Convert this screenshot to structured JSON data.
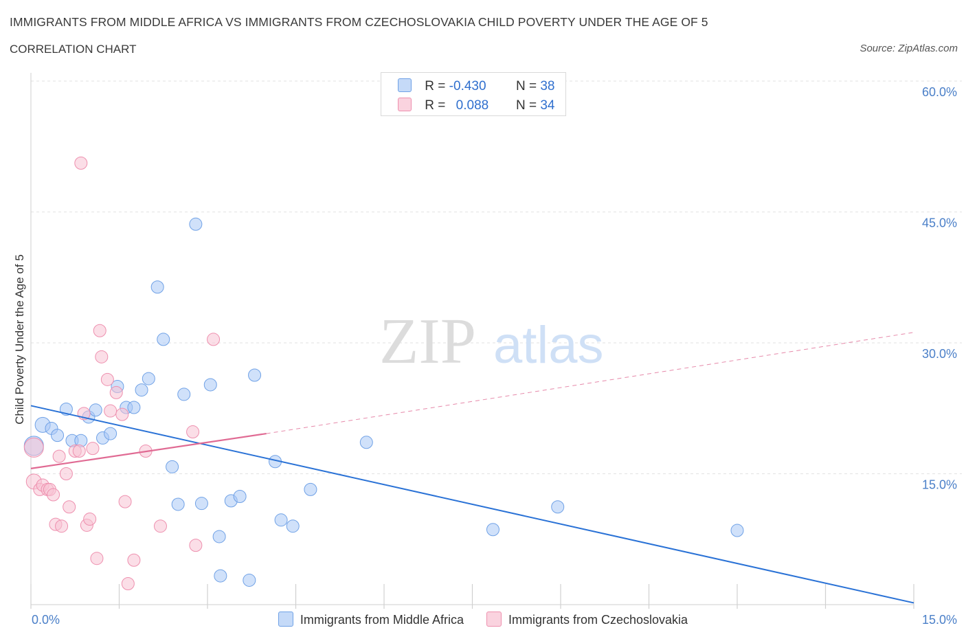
{
  "header": {
    "title": "IMMIGRANTS FROM MIDDLE AFRICA VS IMMIGRANTS FROM CZECHOSLOVAKIA CHILD POVERTY UNDER THE AGE OF 5",
    "subtitle": "CORRELATION CHART",
    "source": "Source: ZipAtlas.com"
  },
  "legend_top": {
    "rows": [
      {
        "r_label": "R =",
        "r_value": "-0.430",
        "n_label": "N =",
        "n_value": "38",
        "color": "#a9c8f5",
        "border": "#6fa1e6"
      },
      {
        "r_label": "R =",
        "r_value": "0.088",
        "n_label": "N =",
        "n_value": "34",
        "color": "#f8c3d3",
        "border": "#ee8fae"
      }
    ]
  },
  "watermark": {
    "zip": "ZIP",
    "atlas": "atlas"
  },
  "chart_data": {
    "type": "scatter",
    "xlabel": "",
    "ylabel": "Child Poverty Under the Age of 5",
    "xlim": [
      0,
      15
    ],
    "ylim": [
      0,
      60
    ],
    "x_ticks": [
      {
        "value": 0,
        "label": "0.0%"
      },
      {
        "value": 15,
        "label": "15.0%"
      }
    ],
    "y_ticks": [
      {
        "value": 15,
        "label": "15.0%"
      },
      {
        "value": 30,
        "label": "30.0%"
      },
      {
        "value": 45,
        "label": "45.0%"
      },
      {
        "value": 60,
        "label": "60.0%"
      }
    ],
    "grid": true,
    "series": [
      {
        "name": "Immigrants from Middle Africa",
        "color": "#a9c8f5",
        "stroke": "#6fa1e6",
        "line_color": "#2a72d6",
        "points": [
          [
            0.05,
            18.2,
            14
          ],
          [
            0.2,
            20.6,
            11
          ],
          [
            0.35,
            20.2,
            9
          ],
          [
            0.45,
            19.4,
            9
          ],
          [
            0.6,
            22.4,
            9
          ],
          [
            0.7,
            18.8,
            9
          ],
          [
            0.85,
            18.8,
            9
          ],
          [
            0.98,
            21.5,
            9
          ],
          [
            1.1,
            22.3,
            9
          ],
          [
            1.22,
            19.1,
            9
          ],
          [
            1.35,
            19.6,
            9
          ],
          [
            1.47,
            25.0,
            9
          ],
          [
            1.62,
            22.6,
            9
          ],
          [
            1.75,
            22.6,
            9
          ],
          [
            1.88,
            24.6,
            9
          ],
          [
            2.0,
            25.9,
            9
          ],
          [
            2.15,
            36.4,
            9
          ],
          [
            2.25,
            30.4,
            9
          ],
          [
            2.4,
            15.8,
            9
          ],
          [
            2.5,
            11.5,
            9
          ],
          [
            2.6,
            24.1,
            9
          ],
          [
            2.8,
            43.6,
            9
          ],
          [
            2.9,
            11.6,
            9
          ],
          [
            3.05,
            25.2,
            9
          ],
          [
            3.2,
            7.8,
            9
          ],
          [
            3.22,
            3.3,
            9
          ],
          [
            3.4,
            11.9,
            9
          ],
          [
            3.55,
            12.4,
            9
          ],
          [
            3.71,
            2.8,
            9
          ],
          [
            3.8,
            26.3,
            9
          ],
          [
            4.15,
            16.4,
            9
          ],
          [
            4.25,
            9.7,
            9
          ],
          [
            4.45,
            9.0,
            9
          ],
          [
            4.75,
            13.2,
            9
          ],
          [
            5.7,
            18.6,
            9
          ],
          [
            7.85,
            8.6,
            9
          ],
          [
            8.95,
            11.2,
            9
          ],
          [
            12.0,
            8.5,
            9
          ]
        ],
        "trend": {
          "x": [
            0,
            15
          ],
          "y": [
            22.8,
            0.2
          ],
          "dashed_extension": false
        }
      },
      {
        "name": "Immigrants from Czechoslovakia",
        "color": "#f8c3d3",
        "stroke": "#ee8fae",
        "line_color": "#e06a93",
        "points": [
          [
            0.05,
            18.0,
            14
          ],
          [
            0.05,
            14.1,
            11
          ],
          [
            0.15,
            13.2,
            9
          ],
          [
            0.2,
            13.7,
            9
          ],
          [
            0.28,
            13.2,
            9
          ],
          [
            0.32,
            13.2,
            9
          ],
          [
            0.38,
            12.6,
            9
          ],
          [
            0.42,
            9.2,
            9
          ],
          [
            0.48,
            17.0,
            9
          ],
          [
            0.52,
            9.0,
            9
          ],
          [
            0.6,
            15.0,
            9
          ],
          [
            0.65,
            11.2,
            9
          ],
          [
            0.75,
            17.6,
            9
          ],
          [
            0.82,
            17.6,
            9
          ],
          [
            0.85,
            50.6,
            9
          ],
          [
            0.9,
            21.9,
            9
          ],
          [
            0.95,
            9.1,
            9
          ],
          [
            1.0,
            9.8,
            9
          ],
          [
            1.05,
            17.9,
            9
          ],
          [
            1.12,
            5.3,
            9
          ],
          [
            1.17,
            31.4,
            9
          ],
          [
            1.2,
            28.4,
            9
          ],
          [
            1.3,
            25.8,
            9
          ],
          [
            1.35,
            22.2,
            9
          ],
          [
            1.45,
            24.3,
            9
          ],
          [
            1.55,
            21.8,
            9
          ],
          [
            1.6,
            11.8,
            9
          ],
          [
            1.65,
            2.4,
            9
          ],
          [
            1.75,
            5.1,
            9
          ],
          [
            1.95,
            17.6,
            9
          ],
          [
            2.2,
            9.0,
            9
          ],
          [
            2.75,
            19.8,
            9
          ],
          [
            2.8,
            6.8,
            9
          ],
          [
            3.1,
            30.4,
            9
          ]
        ],
        "trend": {
          "x": [
            0,
            4.0
          ],
          "y": [
            15.6,
            19.6
          ],
          "dash_x": [
            4.0,
            15
          ],
          "dash_y": [
            19.6,
            31.2
          ]
        }
      }
    ]
  }
}
